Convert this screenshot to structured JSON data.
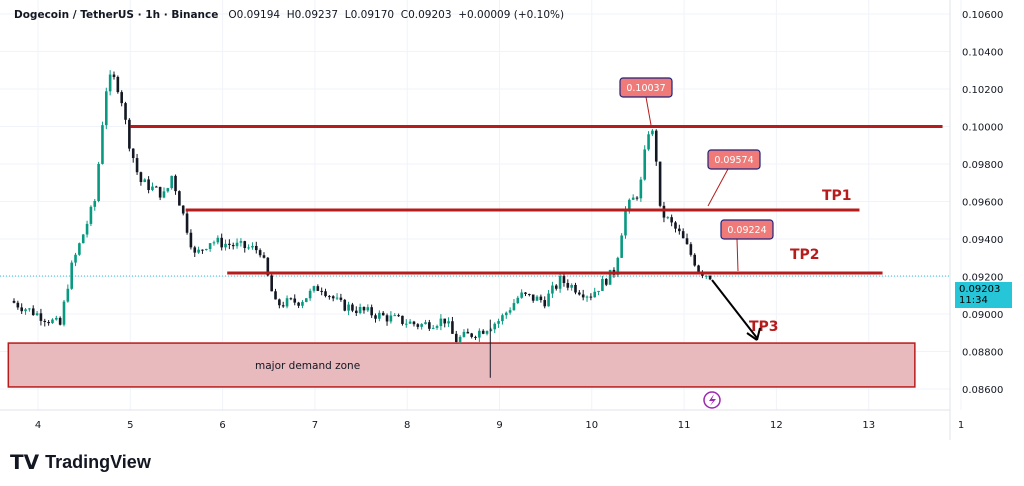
{
  "header": {
    "symbol": "Dogecoin / TetherUS · 1h · Binance",
    "open": "O0.09194",
    "high": "H0.09237",
    "low": "L0.09170",
    "close": "C0.09203",
    "change": "+0.00009 (+0.10%)"
  },
  "price_label": {
    "price": "0.09203",
    "countdown": "11:34"
  },
  "brand": "TradingView",
  "colors": {
    "up": "#089981",
    "down": "#131722",
    "level": "#b71c1c",
    "zone": "#e8b9bd",
    "callout": "#f07a78",
    "last_price": "#27c5d8"
  },
  "chart_data": {
    "type": "candlestick",
    "x_ticks": [
      "4",
      "5",
      "6",
      "7",
      "8",
      "9",
      "10",
      "11",
      "12",
      "13",
      "1"
    ],
    "y_ticks": [
      "0.10600",
      "0.10400",
      "0.10200",
      "0.10000",
      "0.09800",
      "0.09600",
      "0.09400",
      "0.09200",
      "0.09000",
      "0.08800",
      "0.08600"
    ],
    "ylim": [
      0.0852,
      0.1066
    ],
    "price_path": [
      [
        3.7,
        0.0907
      ],
      [
        4.24,
        0.0894
      ],
      [
        4.35,
        0.0923
      ],
      [
        4.62,
        0.0961
      ],
      [
        4.73,
        0.1019
      ],
      [
        4.8,
        0.1027
      ],
      [
        4.89,
        0.1019
      ],
      [
        4.98,
        0.0993
      ],
      [
        5.1,
        0.0971
      ],
      [
        5.38,
        0.0963
      ],
      [
        5.45,
        0.0974
      ],
      [
        5.59,
        0.095
      ],
      [
        5.7,
        0.0931
      ],
      [
        5.86,
        0.0939
      ],
      [
        6.41,
        0.0934
      ],
      [
        6.57,
        0.0905
      ],
      [
        6.84,
        0.0907
      ],
      [
        7.06,
        0.0915
      ],
      [
        7.27,
        0.0905
      ],
      [
        7.71,
        0.0899
      ],
      [
        8.14,
        0.0894
      ],
      [
        8.41,
        0.0897
      ],
      [
        8.52,
        0.0886
      ],
      [
        8.79,
        0.0891
      ],
      [
        9.01,
        0.0897
      ],
      [
        9.22,
        0.091
      ],
      [
        9.49,
        0.0907
      ],
      [
        9.66,
        0.0918
      ],
      [
        9.98,
        0.091
      ],
      [
        10.25,
        0.0923
      ],
      [
        10.36,
        0.0955
      ],
      [
        10.52,
        0.0966
      ],
      [
        10.61,
        0.0998
      ],
      [
        10.68,
        0.0995
      ],
      [
        10.74,
        0.0955
      ],
      [
        10.96,
        0.0942
      ],
      [
        11.17,
        0.0923
      ],
      [
        11.3,
        0.092
      ]
    ],
    "levels": [
      {
        "price": 0.1,
        "from": 5.0,
        "to": 13.8
      },
      {
        "price": 0.09555,
        "from": 5.6,
        "to": 12.9,
        "label": "TP1"
      },
      {
        "price": 0.09219,
        "from": 6.05,
        "to": 13.15,
        "label": "TP2"
      }
    ],
    "zone": {
      "label": "major demand zone",
      "top": 0.08845,
      "bottom": 0.08611,
      "from": 3.7,
      "to": 13.5
    },
    "callouts": [
      "0.10037",
      "0.09574",
      "0.09224"
    ],
    "target_label": "TP3",
    "last_price": 0.09203
  }
}
